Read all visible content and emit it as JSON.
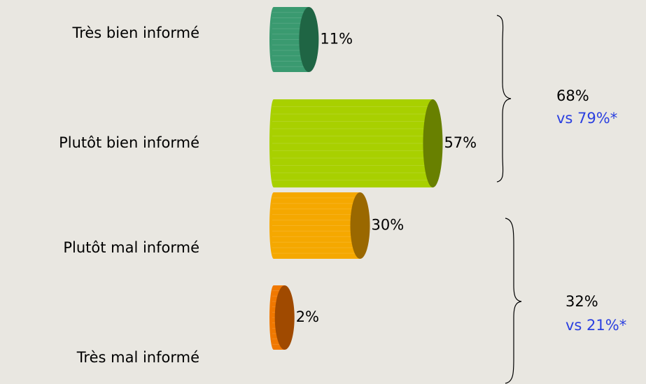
{
  "chart_data": {
    "type": "bar",
    "orientation": "horizontal",
    "categories": [
      "Très bien informé",
      "Plutôt bien informé",
      "Plutôt mal informé",
      "Très mal informé"
    ],
    "values": [
      11,
      57,
      30,
      2
    ],
    "value_labels": [
      "11%",
      "57%",
      "30%",
      "2%"
    ],
    "colors": [
      "#3a9a70",
      "#a8d000",
      "#f5a800",
      "#f07800"
    ],
    "cap_colors": [
      "#1f6544",
      "#688000",
      "#9a6800",
      "#a04a00"
    ],
    "xlim": [
      0,
      60
    ],
    "annotations": [
      {
        "text": "68%",
        "subtext": "vs 79%*"
      },
      {
        "text": "32%",
        "subtext": "vs 21%*"
      }
    ]
  }
}
